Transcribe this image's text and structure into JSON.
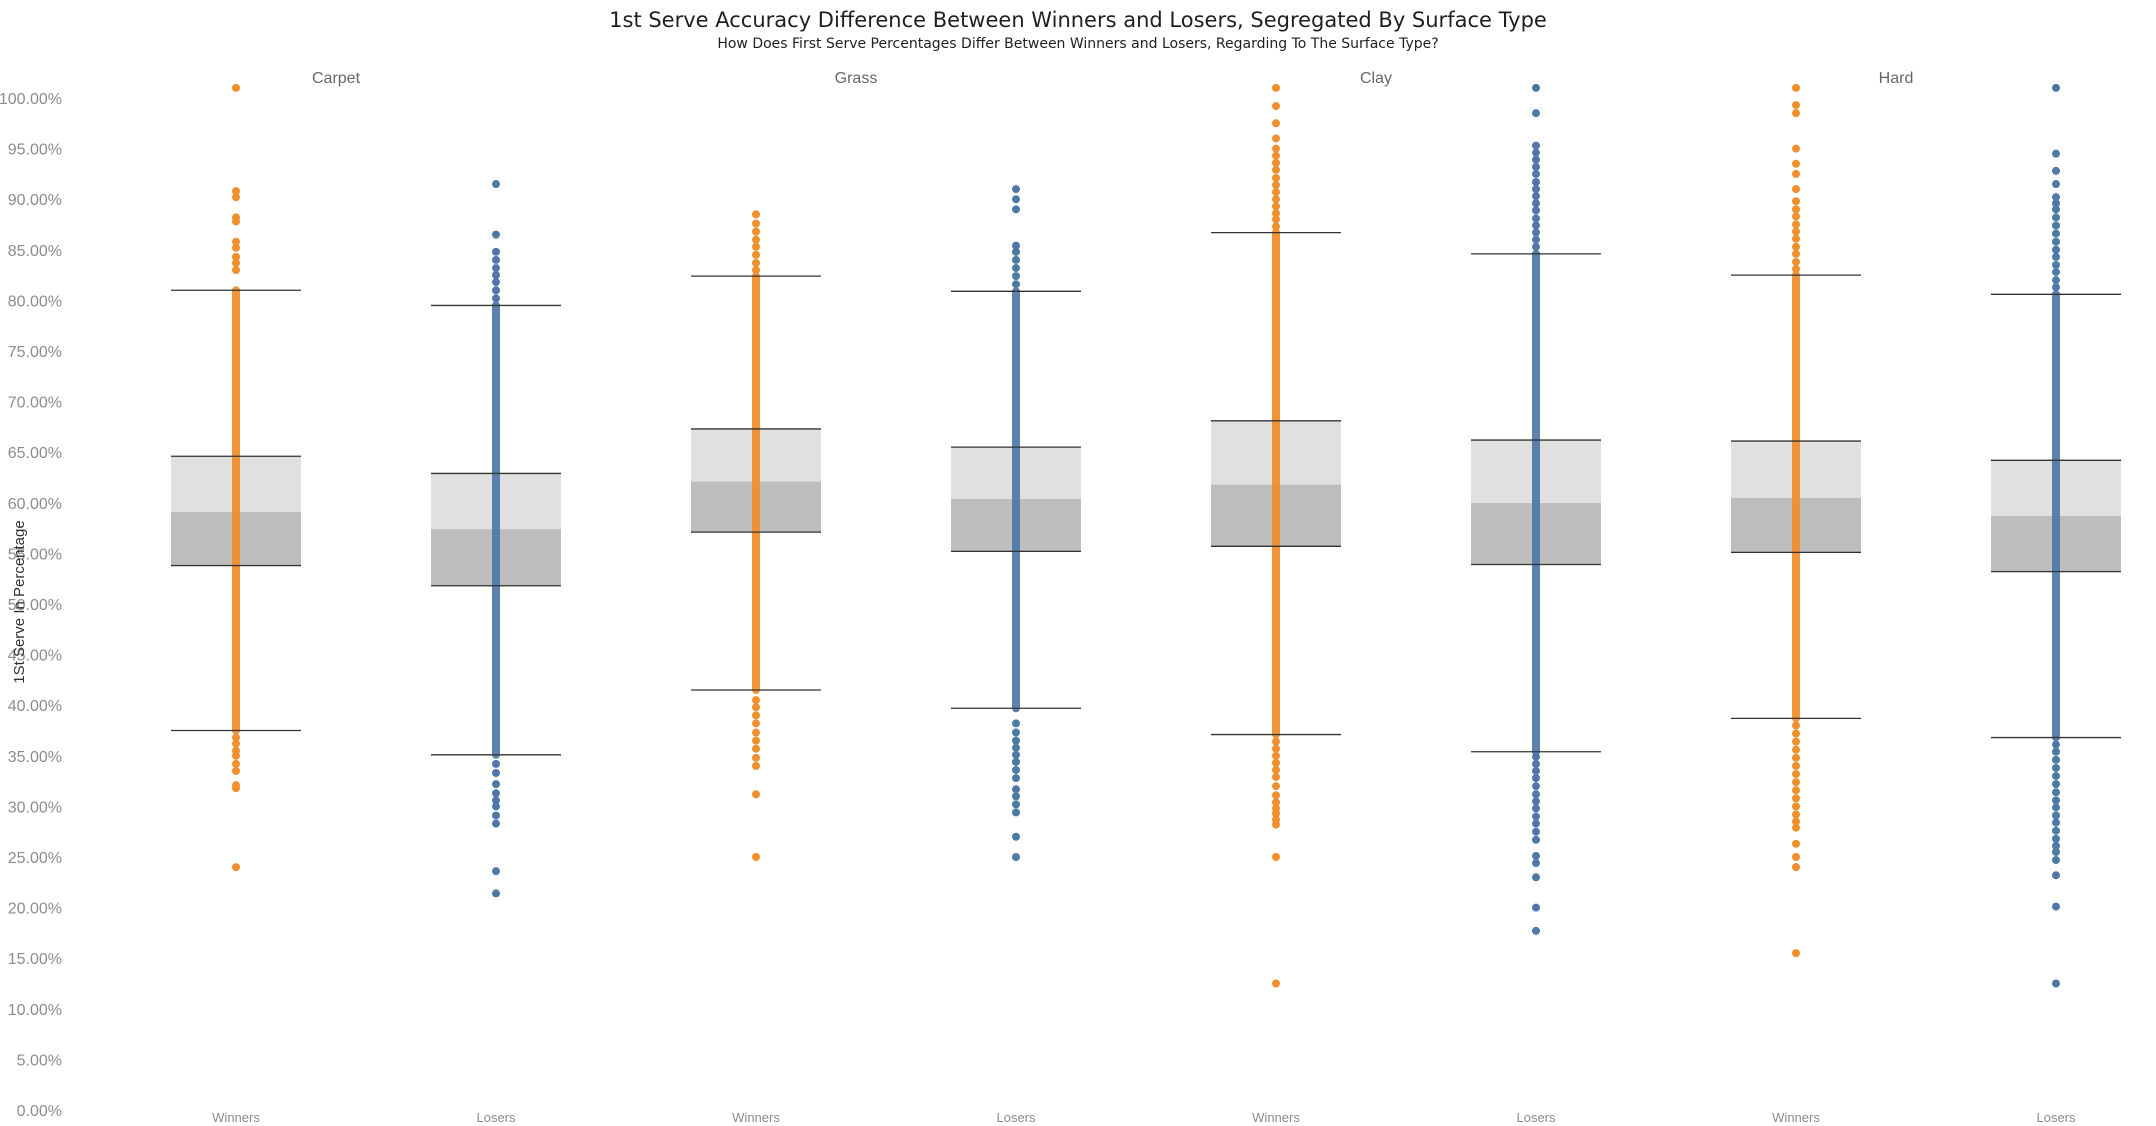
{
  "chart_data": {
    "type": "box-plot-with-points",
    "title": "1st Serve Accuracy Difference Between Winners and Losers, Segregated By Surface Type",
    "subtitle": "How Does First Serve Percentages Differ Between Winners and Losers, Regarding To The Surface Type?",
    "ylabel": "1St Serve In Percentage",
    "ylim": [
      0,
      100
    ],
    "y_ticks": [
      "0.00%",
      "5.00%",
      "10.00%",
      "15.00%",
      "20.00%",
      "25.00%",
      "30.00%",
      "35.00%",
      "40.00%",
      "45.00%",
      "50.00%",
      "55.00%",
      "60.00%",
      "65.00%",
      "70.00%",
      "75.00%",
      "80.00%",
      "85.00%",
      "90.00%",
      "95.00%",
      "100.00%"
    ],
    "colors": {
      "Winners": "#f28e2b",
      "Losers": "#4e79a7",
      "box_upper": "#e0e0e0",
      "box_lower": "#bdbdbd",
      "whisker": "#333333"
    },
    "panels": [
      {
        "surface": "Carpet",
        "groups": [
          {
            "category": "Winners",
            "whisker_low": 37.5,
            "q1": 53.8,
            "median": 59.1,
            "q3": 64.6,
            "whisker_high": 81.0,
            "range_low": 37.5,
            "range_high": 81.0,
            "outliers": [
              24.0,
              31.8,
              32.1,
              33.5,
              34.2,
              35.0,
              35.5,
              36.2,
              36.8,
              83.0,
              83.7,
              84.3,
              85.2,
              85.8,
              87.8,
              88.2,
              90.2,
              90.8,
              101.0
            ]
          },
          {
            "category": "Losers",
            "whisker_low": 35.1,
            "q1": 51.8,
            "median": 57.4,
            "q3": 62.9,
            "whisker_high": 79.5,
            "range_low": 35.1,
            "range_high": 79.5,
            "outliers": [
              21.4,
              23.6,
              28.3,
              29.1,
              30.0,
              30.6,
              31.3,
              32.2,
              33.3,
              34.2,
              80.2,
              81.0,
              81.8,
              82.5,
              83.2,
              84.0,
              84.8,
              86.5,
              91.5
            ]
          }
        ]
      },
      {
        "surface": "Grass",
        "groups": [
          {
            "category": "Winners",
            "whisker_low": 41.5,
            "q1": 57.1,
            "median": 62.1,
            "q3": 67.3,
            "whisker_high": 82.4,
            "range_low": 41.5,
            "range_high": 82.4,
            "outliers": [
              25.0,
              31.2,
              34.0,
              34.8,
              35.7,
              36.5,
              37.3,
              38.2,
              39.0,
              39.8,
              40.5,
              83.0,
              83.7,
              84.5,
              85.3,
              86.0,
              86.8,
              87.6,
              88.5
            ]
          },
          {
            "category": "Losers",
            "whisker_low": 39.7,
            "q1": 55.2,
            "median": 60.4,
            "q3": 65.5,
            "whisker_high": 80.9,
            "range_low": 39.7,
            "range_high": 80.9,
            "outliers": [
              25.0,
              27.0,
              29.4,
              30.2,
              31.0,
              31.7,
              32.8,
              33.6,
              34.4,
              35.1,
              35.8,
              36.5,
              37.3,
              38.2,
              81.6,
              82.4,
              83.2,
              84.0,
              84.8,
              85.4,
              89.0,
              90.0,
              91.0
            ]
          }
        ]
      },
      {
        "surface": "Clay",
        "groups": [
          {
            "category": "Winners",
            "whisker_low": 37.1,
            "q1": 55.7,
            "median": 61.8,
            "q3": 68.1,
            "whisker_high": 86.7,
            "range_low": 37.1,
            "range_high": 86.7,
            "outliers": [
              12.5,
              25.0,
              28.2,
              28.7,
              29.3,
              29.8,
              30.4,
              31.1,
              32.0,
              32.9,
              33.6,
              34.3,
              35.0,
              35.7,
              36.4,
              87.3,
              88.0,
              88.6,
              89.3,
              90.0,
              90.7,
              91.4,
              92.1,
              92.9,
              93.6,
              94.3,
              95.0,
              96.0,
              97.5,
              99.2,
              101.0
            ]
          },
          {
            "category": "Losers",
            "whisker_low": 35.4,
            "q1": 53.9,
            "median": 60.0,
            "q3": 66.2,
            "whisker_high": 84.6,
            "range_low": 35.4,
            "range_high": 84.6,
            "outliers": [
              17.7,
              20.0,
              23.0,
              24.4,
              25.1,
              26.7,
              27.5,
              28.3,
              29.0,
              29.8,
              30.5,
              31.2,
              32.0,
              32.8,
              33.5,
              34.2,
              34.9,
              85.3,
              86.0,
              86.7,
              87.4,
              88.1,
              88.9,
              89.6,
              90.3,
              91.0,
              91.7,
              92.5,
              93.2,
              93.9,
              94.6,
              95.3,
              98.5,
              101.0
            ]
          }
        ]
      },
      {
        "surface": "Hard",
        "groups": [
          {
            "category": "Winners",
            "whisker_low": 38.7,
            "q1": 55.1,
            "median": 60.5,
            "q3": 66.1,
            "whisker_high": 82.5,
            "range_low": 38.7,
            "range_high": 82.5,
            "outliers": [
              15.5,
              24.0,
              25.0,
              26.3,
              27.9,
              28.5,
              29.2,
              30.0,
              30.8,
              31.6,
              32.4,
              33.2,
              34.0,
              34.8,
              35.6,
              36.4,
              37.2,
              38.0,
              83.1,
              83.8,
              84.6,
              85.3,
              86.1,
              86.8,
              87.5,
              88.3,
              89.0,
              89.8,
              91.0,
              92.5,
              93.5,
              95.0,
              98.5,
              99.3,
              101.0
            ]
          },
          {
            "category": "Losers",
            "whisker_low": 36.8,
            "q1": 53.2,
            "median": 58.7,
            "q3": 64.2,
            "whisker_high": 80.6,
            "range_low": 36.8,
            "range_high": 80.6,
            "outliers": [
              12.5,
              20.1,
              23.2,
              24.7,
              25.5,
              26.1,
              26.8,
              27.6,
              28.4,
              29.1,
              29.9,
              30.6,
              31.4,
              32.2,
              33.0,
              33.8,
              34.6,
              35.4,
              36.1,
              81.3,
              82.0,
              82.8,
              83.5,
              84.3,
              85.0,
              85.8,
              86.6,
              87.4,
              88.2,
              89.0,
              89.6,
              90.2,
              91.5,
              92.8,
              94.5,
              101.0
            ]
          }
        ]
      }
    ]
  }
}
